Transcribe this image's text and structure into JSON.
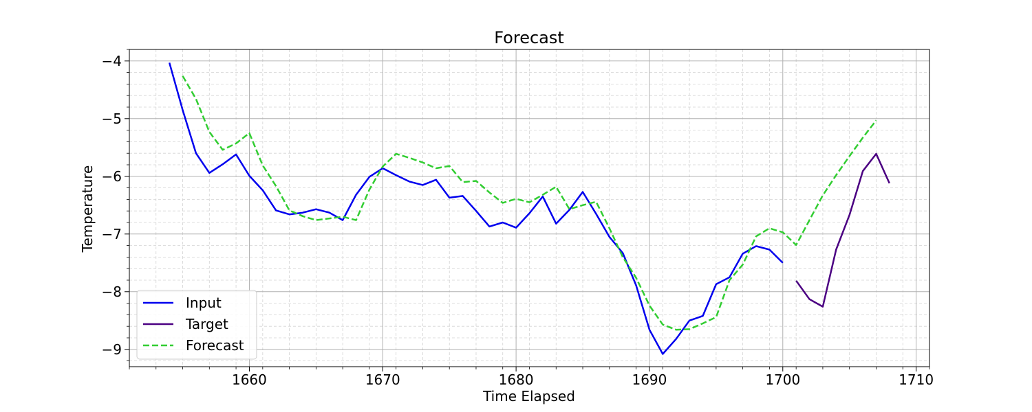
{
  "chart_data": {
    "type": "line",
    "title": "Forecast",
    "xlabel": "Time Elapsed",
    "ylabel": "Temperature",
    "xlim": [
      1651,
      1711
    ],
    "ylim": [
      -9.3,
      -3.8
    ],
    "xticks": [
      1660,
      1670,
      1680,
      1690,
      1700,
      1710
    ],
    "yticks": [
      -4,
      -5,
      -6,
      -7,
      -8,
      -9
    ],
    "xtick_labels": [
      "1660",
      "1670",
      "1680",
      "1690",
      "1700",
      "1710"
    ],
    "ytick_labels": [
      "−4",
      "−5",
      "−6",
      "−7",
      "−8",
      "−9"
    ],
    "grid": true,
    "minor_grid": true,
    "legend_position": "lower-left",
    "series": [
      {
        "name": "Input",
        "color": "#0000ee",
        "style": "solid",
        "x": [
          1654,
          1655,
          1656,
          1657,
          1658,
          1659,
          1660,
          1661,
          1662,
          1663,
          1664,
          1665,
          1666,
          1667,
          1668,
          1669,
          1670,
          1671,
          1672,
          1673,
          1674,
          1675,
          1676,
          1677,
          1678,
          1679,
          1680,
          1681,
          1682,
          1683,
          1684,
          1685,
          1686,
          1687,
          1688,
          1689,
          1690,
          1691,
          1692,
          1693,
          1694,
          1695,
          1696,
          1697,
          1698,
          1699,
          1700
        ],
        "y": [
          -4.03,
          -4.85,
          -5.6,
          -5.94,
          -5.79,
          -5.62,
          -5.99,
          -6.24,
          -6.59,
          -6.66,
          -6.63,
          -6.57,
          -6.63,
          -6.76,
          -6.32,
          -6.01,
          -5.86,
          -5.98,
          -6.09,
          -6.15,
          -6.06,
          -6.37,
          -6.34,
          -6.6,
          -6.87,
          -6.8,
          -6.89,
          -6.64,
          -6.35,
          -6.82,
          -6.58,
          -6.27,
          -6.65,
          -7.05,
          -7.33,
          -7.89,
          -8.66,
          -9.08,
          -8.82,
          -8.5,
          -8.42,
          -7.87,
          -7.75,
          -7.34,
          -7.21,
          -7.27,
          -7.5
        ]
      },
      {
        "name": "Target",
        "color": "#4b0082",
        "style": "solid",
        "x": [
          1701,
          1702,
          1703,
          1704,
          1705,
          1706,
          1707,
          1708
        ],
        "y": [
          -7.81,
          -8.13,
          -8.26,
          -7.27,
          -6.67,
          -5.91,
          -5.61,
          -6.12
        ]
      },
      {
        "name": "Forecast",
        "color": "#32cd32",
        "style": "dashed",
        "x": [
          1655,
          1656,
          1657,
          1658,
          1659,
          1660,
          1661,
          1662,
          1663,
          1664,
          1665,
          1666,
          1667,
          1668,
          1669,
          1670,
          1671,
          1672,
          1673,
          1674,
          1675,
          1676,
          1677,
          1678,
          1679,
          1680,
          1681,
          1682,
          1683,
          1684,
          1685,
          1686,
          1687,
          1688,
          1689,
          1690,
          1691,
          1692,
          1693,
          1694,
          1695,
          1696,
          1697,
          1698,
          1699,
          1700,
          1701,
          1702,
          1703,
          1704,
          1705,
          1706,
          1707
        ],
        "y": [
          -4.26,
          -4.66,
          -5.23,
          -5.54,
          -5.43,
          -5.25,
          -5.81,
          -6.17,
          -6.59,
          -6.69,
          -6.76,
          -6.73,
          -6.7,
          -6.76,
          -6.23,
          -5.83,
          -5.61,
          -5.68,
          -5.76,
          -5.86,
          -5.82,
          -6.1,
          -6.08,
          -6.28,
          -6.46,
          -6.39,
          -6.45,
          -6.32,
          -6.18,
          -6.57,
          -6.5,
          -6.44,
          -6.9,
          -7.4,
          -7.76,
          -8.24,
          -8.57,
          -8.66,
          -8.65,
          -8.55,
          -8.44,
          -7.8,
          -7.53,
          -7.04,
          -6.9,
          -6.97,
          -7.19,
          -6.76,
          -6.33,
          -5.98,
          -5.65,
          -5.33,
          -5.03
        ]
      }
    ]
  }
}
